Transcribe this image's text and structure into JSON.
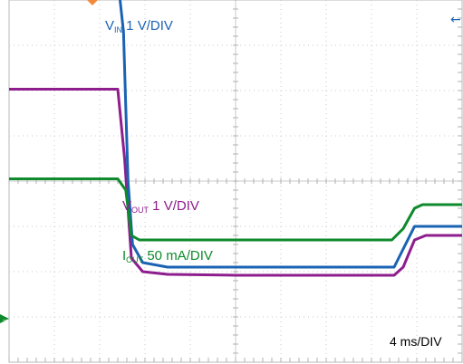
{
  "chart_data": {
    "type": "line",
    "xlim": [
      0,
      40
    ],
    "ylim": [
      0,
      8
    ],
    "grid": true,
    "timebase": {
      "label": "4 ms/DIV"
    },
    "series": [
      {
        "key": "vout",
        "label_main": "V",
        "label_sub": "OUT",
        "label_rest": " 1 V/DIV",
        "color": "#8e1d8e",
        "points": [
          [
            0,
            6.03
          ],
          [
            9.6,
            6.03
          ],
          [
            10.2,
            4.5
          ],
          [
            10.8,
            2.3
          ],
          [
            11.8,
            2.0
          ],
          [
            14,
            1.94
          ],
          [
            20,
            1.92
          ],
          [
            34,
            1.92
          ],
          [
            34.8,
            2.1
          ],
          [
            35.8,
            2.7
          ],
          [
            36.8,
            2.8
          ],
          [
            40,
            2.8
          ]
        ]
      },
      {
        "key": "vin",
        "label_main": "V",
        "label_sub": "IN",
        "label_rest": " 1 V/DIV",
        "color": "#1a63b3",
        "points": [
          [
            9.8,
            8.0
          ],
          [
            10.1,
            7.3
          ],
          [
            10.5,
            4.0
          ],
          [
            10.9,
            2.6
          ],
          [
            11.8,
            2.2
          ],
          [
            14,
            2.1
          ],
          [
            20,
            2.1
          ],
          [
            34,
            2.1
          ],
          [
            34.8,
            2.5
          ],
          [
            35.8,
            3.0
          ],
          [
            36.8,
            3.0
          ],
          [
            40,
            3.0
          ]
        ]
      },
      {
        "key": "iout",
        "label_main": "I",
        "label_sub": "OUT",
        "label_rest": " 50 mA/DIV",
        "color": "#0f8a2c",
        "points": [
          [
            0,
            4.05
          ],
          [
            9.6,
            4.05
          ],
          [
            10.3,
            3.8
          ],
          [
            10.8,
            2.8
          ],
          [
            11.5,
            2.7
          ],
          [
            12.5,
            2.7
          ],
          [
            20,
            2.7
          ],
          [
            33.8,
            2.7
          ],
          [
            34.8,
            2.95
          ],
          [
            35.8,
            3.4
          ],
          [
            36.5,
            3.48
          ],
          [
            40,
            3.48
          ]
        ]
      }
    ],
    "markers": {
      "ground_arrow_color": "#0f8a2c",
      "trigger_arrow_color": "#1a63b3",
      "trigger_marker_color": "#f28a3a"
    }
  }
}
